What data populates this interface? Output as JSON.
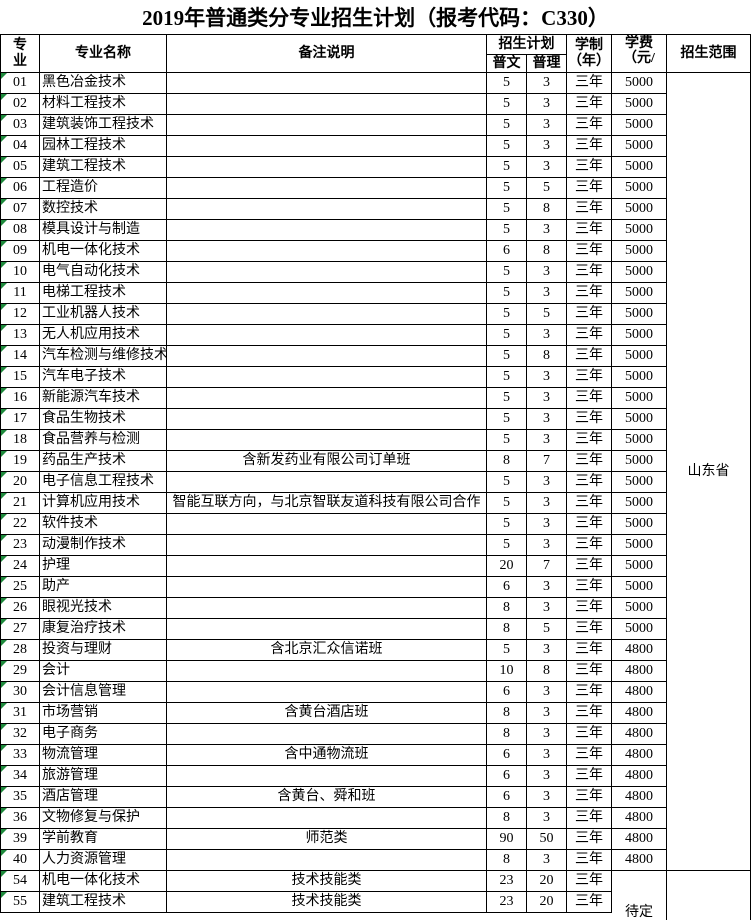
{
  "title": "2019年普通类分专业招生计划（报考代码：C330）",
  "header": {
    "no": "专业",
    "name": "专业名称",
    "note": "备注说明",
    "plan": "招生计划",
    "wen": "普文",
    "li": "普理",
    "years": "学制（年）",
    "fee": "学费（元/",
    "scope": "招生范围"
  },
  "rows": [
    [
      "01",
      "黑色冶金技术",
      null,
      5,
      3,
      "三年",
      5000
    ],
    [
      "02",
      "材料工程技术",
      null,
      5,
      3,
      "三年",
      5000
    ],
    [
      "03",
      "建筑装饰工程技术",
      null,
      5,
      3,
      "三年",
      5000
    ],
    [
      "04",
      "园林工程技术",
      null,
      5,
      3,
      "三年",
      5000
    ],
    [
      "05",
      "建筑工程技术",
      null,
      5,
      3,
      "三年",
      5000
    ],
    [
      "06",
      "工程造价",
      null,
      5,
      5,
      "三年",
      5000
    ],
    [
      "07",
      "数控技术",
      null,
      5,
      8,
      "三年",
      5000
    ],
    [
      "08",
      "模具设计与制造",
      null,
      5,
      3,
      "三年",
      5000
    ],
    [
      "09",
      "机电一体化技术",
      null,
      6,
      8,
      "三年",
      5000
    ],
    [
      "10",
      "电气自动化技术",
      null,
      5,
      3,
      "三年",
      5000
    ],
    [
      "11",
      "电梯工程技术",
      null,
      5,
      3,
      "三年",
      5000
    ],
    [
      "12",
      "工业机器人技术",
      null,
      5,
      5,
      "三年",
      5000
    ],
    [
      "13",
      "无人机应用技术",
      null,
      5,
      3,
      "三年",
      5000
    ],
    [
      "14",
      "汽车检测与维修技术",
      null,
      5,
      8,
      "三年",
      5000
    ],
    [
      "15",
      "汽车电子技术",
      null,
      5,
      3,
      "三年",
      5000
    ],
    [
      "16",
      "新能源汽车技术",
      null,
      5,
      3,
      "三年",
      5000
    ],
    [
      "17",
      "食品生物技术",
      null,
      5,
      3,
      "三年",
      5000
    ],
    [
      "18",
      "食品营养与检测",
      null,
      5,
      3,
      "三年",
      5000
    ],
    [
      "19",
      "药品生产技术",
      "含新发药业有限公司订单班",
      8,
      7,
      "三年",
      5000
    ],
    [
      "20",
      "电子信息工程技术",
      null,
      5,
      3,
      "三年",
      5000
    ],
    [
      "21",
      "计算机应用技术",
      "智能互联方向，与北京智联友道科技有限公司合作",
      5,
      3,
      "三年",
      5000
    ],
    [
      "22",
      "软件技术",
      null,
      5,
      3,
      "三年",
      5000
    ],
    [
      "23",
      "动漫制作技术",
      null,
      5,
      3,
      "三年",
      5000
    ],
    [
      "24",
      "护理",
      null,
      20,
      7,
      "三年",
      5000
    ],
    [
      "25",
      "助产",
      null,
      6,
      3,
      "三年",
      5000
    ],
    [
      "26",
      "眼视光技术",
      null,
      8,
      3,
      "三年",
      5000
    ],
    [
      "27",
      "康复治疗技术",
      null,
      8,
      5,
      "三年",
      5000
    ],
    [
      "28",
      "投资与理财",
      "含北京汇众信诺班",
      5,
      3,
      "三年",
      4800
    ],
    [
      "29",
      "会计",
      null,
      10,
      8,
      "三年",
      4800
    ],
    [
      "30",
      "会计信息管理",
      null,
      6,
      3,
      "三年",
      4800
    ],
    [
      "31",
      "市场营销",
      "含黄台酒店班",
      8,
      3,
      "三年",
      4800
    ],
    [
      "32",
      "电子商务",
      null,
      8,
      3,
      "三年",
      4800
    ],
    [
      "33",
      "物流管理",
      "含中通物流班",
      6,
      3,
      "三年",
      4800
    ],
    [
      "34",
      "旅游管理",
      null,
      6,
      3,
      "三年",
      4800
    ],
    [
      "35",
      "酒店管理",
      "含黄台、舜和班",
      6,
      3,
      "三年",
      4800
    ],
    [
      "36",
      "文物修复与保护",
      null,
      8,
      3,
      "三年",
      4800
    ],
    [
      "39",
      "学前教育",
      "师范类",
      90,
      50,
      "三年",
      4800
    ],
    [
      "40",
      "人力资源管理",
      null,
      8,
      3,
      "三年",
      4800
    ],
    [
      "54",
      "机电一体化技术",
      "技术技能类",
      23,
      20,
      "三年",
      null
    ],
    [
      "55",
      "建筑工程技术",
      "技术技能类",
      23,
      20,
      "三年",
      null
    ]
  ],
  "scope": "山东省",
  "pending": "待定"
}
